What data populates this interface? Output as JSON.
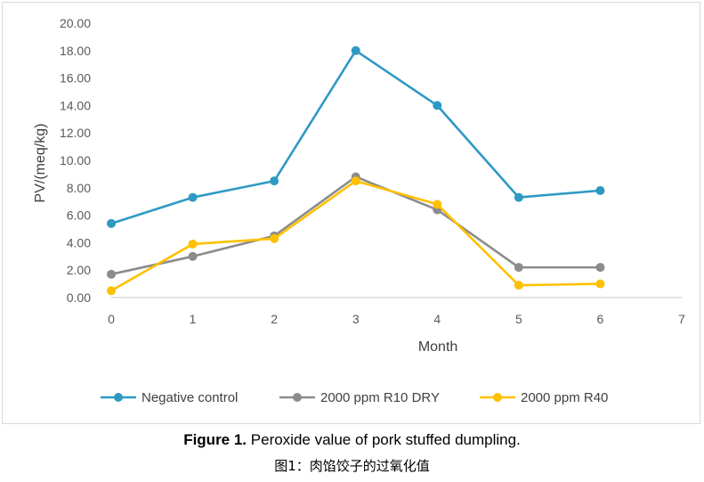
{
  "chart_data": {
    "type": "line",
    "xlabel": "Month",
    "ylabel": "PV/(meq/kg)",
    "xlim": [
      0,
      7
    ],
    "ylim": [
      0,
      20
    ],
    "x_ticks": [
      "0",
      "1",
      "2",
      "3",
      "4",
      "5",
      "6",
      "7"
    ],
    "y_ticks": [
      "0.00",
      "2.00",
      "4.00",
      "6.00",
      "8.00",
      "10.00",
      "12.00",
      "14.00",
      "16.00",
      "18.00",
      "20.00"
    ],
    "grid": false,
    "legend_position": "bottom",
    "x": [
      0,
      1,
      2,
      3,
      4,
      5,
      6
    ],
    "series": [
      {
        "name": "Negative control",
        "color": "#2e9ac4",
        "values": [
          5.4,
          7.3,
          8.5,
          18.0,
          14.0,
          7.3,
          7.8
        ]
      },
      {
        "name": "2000 ppm R10 DRY",
        "color": "#8c8c8c",
        "values": [
          1.7,
          3.0,
          4.5,
          8.8,
          6.4,
          2.2,
          2.2
        ]
      },
      {
        "name": "2000 ppm R40",
        "color": "#ffc000",
        "values": [
          0.5,
          3.9,
          4.3,
          8.5,
          6.8,
          0.9,
          1.0
        ]
      }
    ]
  },
  "caption": {
    "label": "Figure 1.",
    "text": " Peroxide value of pork stuffed dumpling.",
    "zh": "图1：肉馅饺子的过氧化值"
  }
}
